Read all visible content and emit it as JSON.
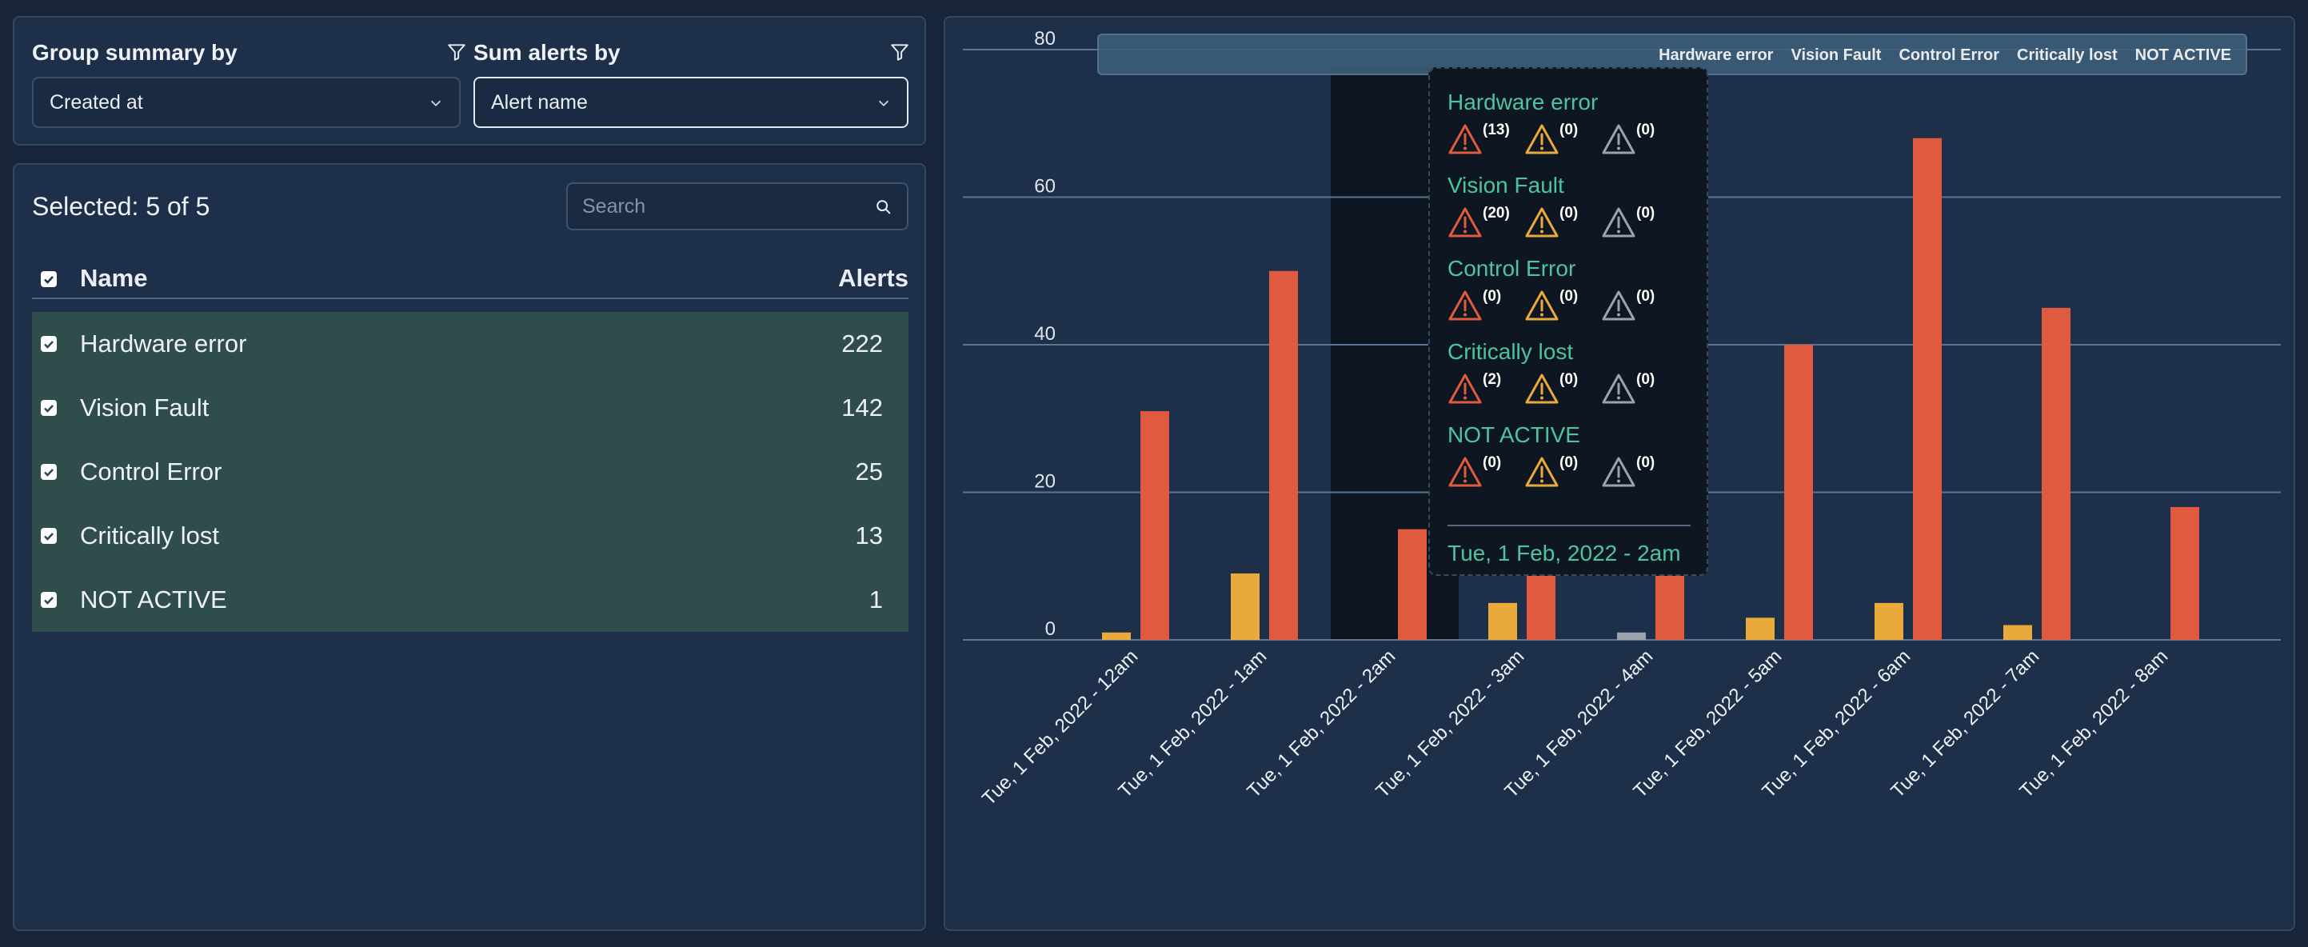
{
  "filters": {
    "group_label": "Group summary by",
    "group_value": "Created at",
    "sum_label": "Sum alerts by",
    "sum_value": "Alert name"
  },
  "list": {
    "selected_text": "Selected: 5 of 5",
    "search_placeholder": "Search",
    "header_name": "Name",
    "header_alerts": "Alerts",
    "rows": [
      {
        "name": "Hardware error",
        "count": "222"
      },
      {
        "name": "Vision Fault",
        "count": "142"
      },
      {
        "name": "Control Error",
        "count": "25"
      },
      {
        "name": "Critically lost",
        "count": "13"
      },
      {
        "name": "NOT ACTIVE",
        "count": "1"
      }
    ]
  },
  "colors": {
    "red": "#e05a3f",
    "orange": "#e9a93b",
    "gray": "#9aa3ad",
    "teal": "#4fc3a1"
  },
  "chart_data": {
    "type": "bar",
    "categories": [
      "Tue, 1 Feb, 2022 - 12am",
      "Tue, 1 Feb, 2022 - 1am",
      "Tue, 1 Feb, 2022 - 2am",
      "Tue, 1 Feb, 2022 - 3am",
      "Tue, 1 Feb, 2022 - 4am",
      "Tue, 1 Feb, 2022 - 5am",
      "Tue, 1 Feb, 2022 - 6am",
      "Tue, 1 Feb, 2022 - 7am",
      "Tue, 1 Feb, 2022 - 8am"
    ],
    "series": [
      {
        "values": [
          0,
          0,
          0,
          0,
          1,
          0,
          0,
          0,
          0
        ],
        "color": "#9aa3ad"
      },
      {
        "values": [
          1,
          9,
          0,
          5,
          0,
          3,
          5,
          2,
          0
        ],
        "color": "#e9a93b"
      },
      {
        "values": [
          31,
          50,
          15,
          20,
          59,
          40,
          68,
          45,
          18
        ],
        "color": "#e05a3f"
      }
    ],
    "yticks": [
      0,
      20,
      40,
      60,
      80
    ],
    "ylim": [
      0,
      80
    ],
    "legend": [
      "Hardware error",
      "Vision Fault",
      "Control Error",
      "Critically lost",
      "NOT ACTIVE"
    ],
    "legend_position": "top-right",
    "grid": true,
    "highlighted_category": 2
  },
  "tooltip": {
    "groups": [
      {
        "name": "Hardware error",
        "counts": [
          "(13)",
          "(0)",
          "(0)"
        ]
      },
      {
        "name": "Vision Fault",
        "counts": [
          "(20)",
          "(0)",
          "(0)"
        ]
      },
      {
        "name": "Control Error",
        "counts": [
          "(0)",
          "(0)",
          "(0)"
        ]
      },
      {
        "name": "Critically lost",
        "counts": [
          "(2)",
          "(0)",
          "(0)"
        ]
      },
      {
        "name": "NOT ACTIVE",
        "counts": [
          "(0)",
          "(0)",
          "(0)"
        ]
      }
    ],
    "date": "Tue, 1 Feb, 2022 - 2am"
  }
}
